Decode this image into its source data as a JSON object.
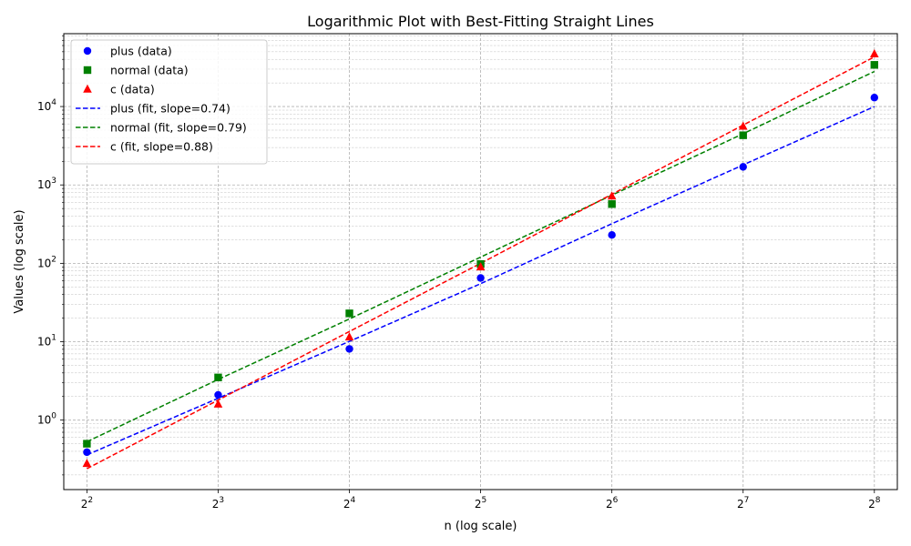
{
  "chart_data": {
    "type": "scatter",
    "title": "Logarithmic Plot with Best-Fitting Straight Lines",
    "xlabel": "n (log scale)",
    "ylabel": "Values (log scale)",
    "x_scale": "log2",
    "y_scale": "log10",
    "xlim": [
      3.54,
      289
    ],
    "ylim": [
      0.13,
      85000
    ],
    "grid": "on (major and minor)",
    "legend_position": "top-left",
    "x_ticks": [
      {
        "value": 4,
        "base": "2",
        "exp": "2"
      },
      {
        "value": 8,
        "base": "2",
        "exp": "3"
      },
      {
        "value": 16,
        "base": "2",
        "exp": "4"
      },
      {
        "value": 32,
        "base": "2",
        "exp": "5"
      },
      {
        "value": 64,
        "base": "2",
        "exp": "6"
      },
      {
        "value": 128,
        "base": "2",
        "exp": "7"
      },
      {
        "value": 256,
        "base": "2",
        "exp": "8"
      }
    ],
    "y_ticks": [
      {
        "value": 1,
        "base": "10",
        "exp": "0"
      },
      {
        "value": 10,
        "base": "10",
        "exp": "1"
      },
      {
        "value": 100,
        "base": "10",
        "exp": "2"
      },
      {
        "value": 1000,
        "base": "10",
        "exp": "3"
      },
      {
        "value": 10000,
        "base": "10",
        "exp": "4"
      }
    ],
    "x": [
      4,
      8,
      16,
      32,
      64,
      128,
      256
    ],
    "series": [
      {
        "name": "plus (data)",
        "kind": "scatter",
        "marker": "circle",
        "color": "#0000ff",
        "values": [
          0.39,
          2.1,
          8.1,
          65,
          230,
          1700,
          13000
        ]
      },
      {
        "name": "normal (data)",
        "kind": "scatter",
        "marker": "square",
        "color": "#008000",
        "values": [
          0.5,
          3.5,
          23,
          98,
          570,
          4300,
          34000
        ]
      },
      {
        "name": "c (data)",
        "kind": "scatter",
        "marker": "triangle",
        "color": "#ff0000",
        "values": [
          0.28,
          1.6,
          11.5,
          90,
          720,
          5600,
          47000
        ]
      },
      {
        "name": "plus (fit, slope=0.74)",
        "kind": "fit",
        "color": "#0000ff",
        "values": [
          0.36,
          1.9,
          10.1,
          55,
          320,
          1800,
          10000
        ]
      },
      {
        "name": "normal (fit, slope=0.79)",
        "kind": "fit",
        "color": "#008000",
        "values": [
          0.53,
          3.3,
          19.5,
          120,
          740,
          4500,
          28000
        ]
      },
      {
        "name": "c (fit, slope=0.88)",
        "kind": "fit",
        "color": "#ff0000",
        "values": [
          0.24,
          1.8,
          13.5,
          100,
          760,
          5800,
          43000
        ]
      }
    ]
  }
}
